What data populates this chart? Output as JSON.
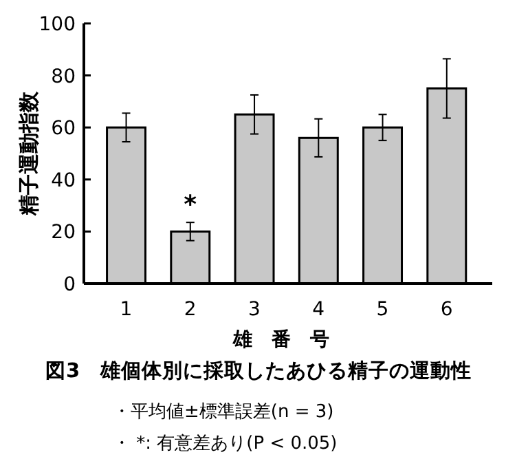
{
  "chart_data": {
    "type": "bar",
    "title": "図3　雄個体別に採取したあひる精子の運動性",
    "xlabel": "雄　番　号",
    "ylabel": "精子運動指数",
    "categories": [
      "1",
      "2",
      "3",
      "4",
      "5",
      "6"
    ],
    "values": [
      60,
      20,
      65,
      56,
      60,
      75
    ],
    "errors": [
      5.5,
      3.5,
      7.5,
      7.3,
      5,
      11.4
    ],
    "color": "#c8c8c8",
    "ylim": [
      0,
      100
    ],
    "yticks": [
      0,
      20,
      40,
      60,
      80,
      100
    ],
    "value_labels": [
      null,
      "*",
      null,
      null,
      null,
      null
    ],
    "annotations": [
      "・平均値±標準誤差(n = 3)",
      "・ *: 有意差あり(P < 0.05)"
    ]
  }
}
